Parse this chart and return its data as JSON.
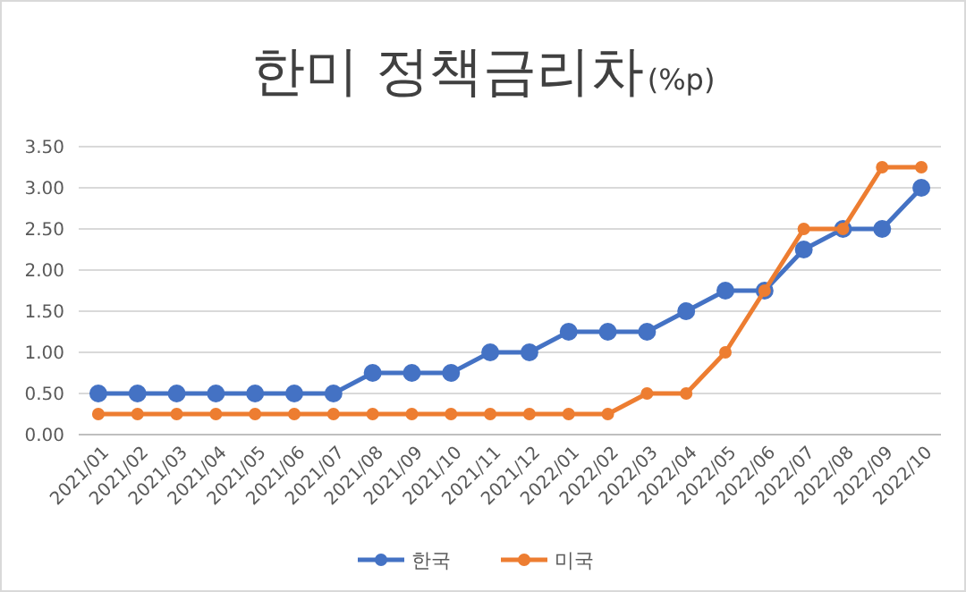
{
  "chart_data": {
    "type": "line",
    "title": "한미 정책금리차",
    "subtitle": "(%p)",
    "categories": [
      "2021/01",
      "2021/02",
      "2021/03",
      "2021/04",
      "2021/05",
      "2021/06",
      "2021/07",
      "2021/08",
      "2021/09",
      "2021/10",
      "2021/11",
      "2021/12",
      "2022/01",
      "2022/02",
      "2022/03",
      "2022/04",
      "2022/05",
      "2022/06",
      "2022/07",
      "2022/08",
      "2022/09",
      "2022/10"
    ],
    "series": [
      {
        "name": "한국",
        "color": "#4472c4",
        "values": [
          0.5,
          0.5,
          0.5,
          0.5,
          0.5,
          0.5,
          0.5,
          0.75,
          0.75,
          0.75,
          1.0,
          1.0,
          1.25,
          1.25,
          1.25,
          1.5,
          1.75,
          1.75,
          2.25,
          2.5,
          2.5,
          3.0
        ]
      },
      {
        "name": "미국",
        "color": "#ed7d31",
        "values": [
          0.25,
          0.25,
          0.25,
          0.25,
          0.25,
          0.25,
          0.25,
          0.25,
          0.25,
          0.25,
          0.25,
          0.25,
          0.25,
          0.25,
          0.5,
          0.5,
          1.0,
          1.75,
          2.5,
          2.5,
          3.25,
          3.25
        ]
      }
    ],
    "ylim": [
      0,
      3.5
    ],
    "yticks": [
      {
        "value": 0,
        "label": "0.00"
      },
      {
        "value": 0.5,
        "label": "0.50"
      },
      {
        "value": 1,
        "label": "1.00"
      },
      {
        "value": 1.5,
        "label": "1.50"
      },
      {
        "value": 2,
        "label": "2.00"
      },
      {
        "value": 2.5,
        "label": "2.50"
      },
      {
        "value": 3,
        "label": "3.00"
      },
      {
        "value": 3.5,
        "label": "3.50"
      }
    ],
    "grid": "y",
    "legend": "bottom",
    "marker": "circle",
    "line_style": "solid"
  }
}
